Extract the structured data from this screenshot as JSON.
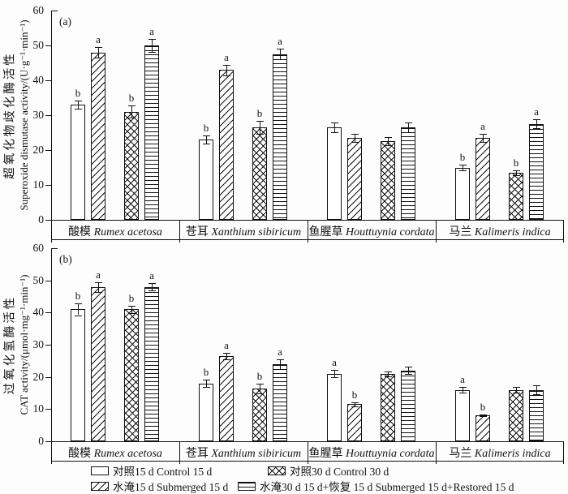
{
  "chart_data": [
    {
      "type": "bar",
      "panel_tag": "(a)",
      "ylabel_cn": "超氧化物歧化酶活性",
      "ylabel_en": "Superoxide dismutase activity/(U·g⁻¹·min⁻¹)",
      "ylim": [
        0,
        60
      ],
      "ytick_step": 10,
      "yticks": [
        0,
        10,
        20,
        30,
        40,
        50,
        60
      ],
      "grid": false,
      "categories_cn": [
        "酸模",
        "苍耳",
        "鱼腥草",
        "马兰"
      ],
      "categories_latin": [
        "Rumex acetosa",
        "Xanthium sibiricum",
        "Houttuynia cordata",
        "Kalimeris indica"
      ],
      "series": [
        {
          "name": "对照15 d Control 15 d",
          "pattern": "plain",
          "values": [
            33,
            23,
            26.5,
            15
          ],
          "errors": [
            1.2,
            1.2,
            1.3,
            0.8
          ],
          "sig_letters": [
            "b",
            "b",
            "",
            "b"
          ]
        },
        {
          "name": "水淹15 d Submerged 15 d",
          "pattern": "diag",
          "values": [
            48,
            43,
            23.5,
            23.5
          ],
          "errors": [
            1.5,
            1.5,
            1.2,
            1.2
          ],
          "sig_letters": [
            "a",
            "a",
            "",
            "a"
          ]
        },
        {
          "name": "对照30 d Control 30 d",
          "pattern": "cross",
          "values": [
            31,
            26.5,
            22.5,
            13.5
          ],
          "errors": [
            1.8,
            1.8,
            1.2,
            0.8
          ],
          "sig_letters": [
            "b",
            "b",
            "",
            "b"
          ]
        },
        {
          "name": "水淹30 d 15 d+恢复 15 d Submerged 15 d+Restored 15 d",
          "pattern": "hline",
          "values": [
            50,
            47.5,
            26.5,
            27.5
          ],
          "errors": [
            1.8,
            1.5,
            1.3,
            1.3
          ],
          "sig_letters": [
            "a",
            "a",
            "",
            "a"
          ]
        }
      ]
    },
    {
      "type": "bar",
      "panel_tag": "(b)",
      "ylabel_cn": "过氧化氢酶活性",
      "ylabel_en": "CAT activity/(μmol·mg⁻¹·min⁻¹)",
      "ylim": [
        0,
        60
      ],
      "ytick_step": 10,
      "yticks": [
        0,
        10,
        20,
        30,
        40,
        50,
        60
      ],
      "grid": false,
      "categories_cn": [
        "酸模",
        "苍耳",
        "鱼腥草",
        "马兰"
      ],
      "categories_latin": [
        "Rumex acetosa",
        "Xanthium sibiricum",
        "Houttuynia cordata",
        "Kalimeris indica"
      ],
      "series": [
        {
          "name": "对照15 d Control 15 d",
          "pattern": "plain",
          "values": [
            41,
            18,
            21,
            16
          ],
          "errors": [
            1.8,
            1.2,
            1.2,
            0.8
          ],
          "sig_letters": [
            "b",
            "b",
            "a",
            "a"
          ]
        },
        {
          "name": "水淹15 d Submerged 15 d",
          "pattern": "diag",
          "values": [
            48,
            26.5,
            11.5,
            8
          ],
          "errors": [
            1.5,
            1.0,
            0.6,
            0.3
          ],
          "sig_letters": [
            "a",
            "a",
            "b",
            "b"
          ]
        },
        {
          "name": "对照30 d Control 30 d",
          "pattern": "cross",
          "values": [
            41,
            16.5,
            21,
            16
          ],
          "errors": [
            1.2,
            1.5,
            0.8,
            0.8
          ],
          "sig_letters": [
            "b",
            "b",
            "",
            ""
          ]
        },
        {
          "name": "水淹30 d 15 d+恢复 15 d Submerged 15 d+Restored 15 d",
          "pattern": "hline",
          "values": [
            48,
            24,
            22,
            16
          ],
          "errors": [
            1.2,
            1.5,
            1.2,
            1.5
          ],
          "sig_letters": [
            "a",
            "a",
            "",
            ""
          ]
        }
      ]
    }
  ]
}
